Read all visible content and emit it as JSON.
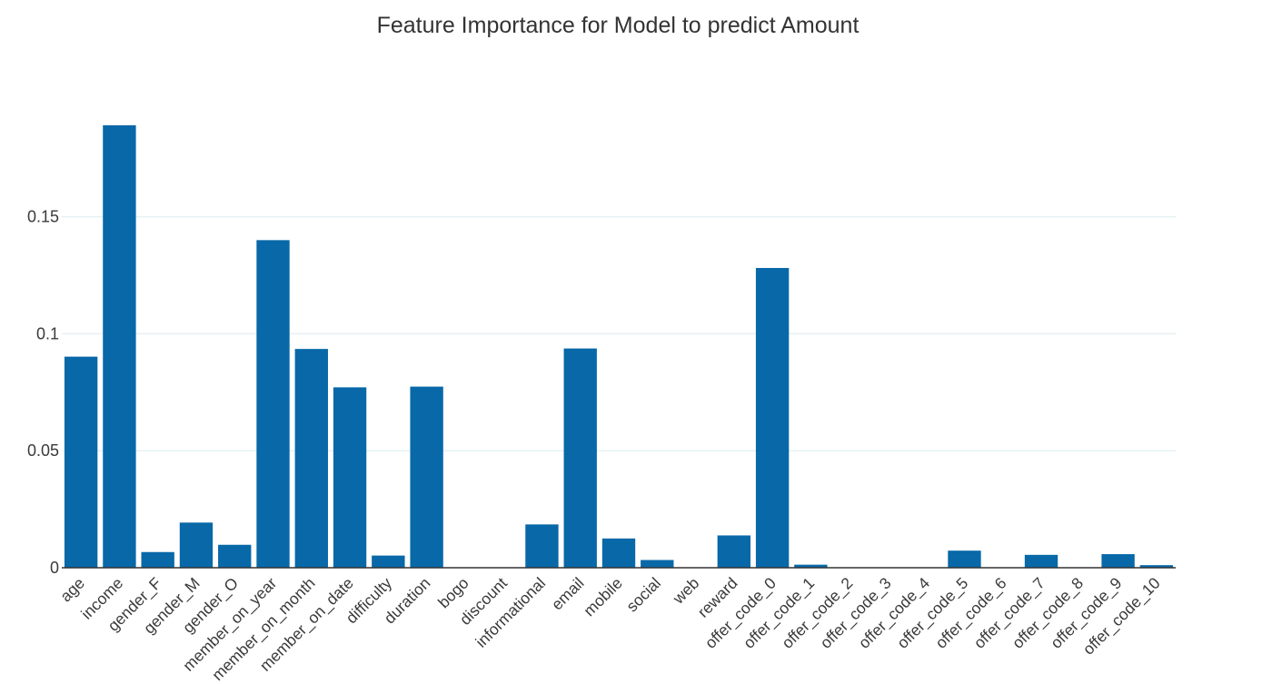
{
  "title": "Feature Importance for Model to predict Amount",
  "colors": {
    "bar": "#0868a8",
    "grid": "#e6f0f5",
    "axis": "#333333",
    "text": "#3a3a3a"
  },
  "chart_data": {
    "type": "bar",
    "title": "Feature Importance for Model to predict Amount",
    "xlabel": "",
    "ylabel": "",
    "categories": [
      "age",
      "income",
      "gender_F",
      "gender_M",
      "gender_O",
      "member_on_year",
      "member_on_month",
      "member_on_date",
      "difficulty",
      "duration",
      "bogo",
      "discount",
      "informational",
      "email",
      "mobile",
      "social",
      "web",
      "reward",
      "offer_code_0",
      "offer_code_1",
      "offer_code_2",
      "offer_code_3",
      "offer_code_4",
      "offer_code_5",
      "offer_code_6",
      "offer_code_7",
      "offer_code_8",
      "offer_code_9",
      "offer_code_10"
    ],
    "values": [
      0.0902,
      0.1891,
      0.0067,
      0.0193,
      0.0098,
      0.14,
      0.0935,
      0.0771,
      0.0052,
      0.0774,
      0,
      0,
      0.0185,
      0.0937,
      0.0125,
      0.0033,
      0,
      0.0138,
      0.1281,
      0.0013,
      0,
      0,
      0,
      0.0073,
      0,
      0.0055,
      0,
      0.0058,
      0.0011
    ],
    "ylim": [
      0,
      0.19
    ],
    "yticks": [
      0,
      0.05,
      0.1,
      0.15
    ],
    "ytick_labels": [
      "0",
      "0.05",
      "0.1",
      "0.15"
    ],
    "grid": true,
    "legend": "none"
  }
}
